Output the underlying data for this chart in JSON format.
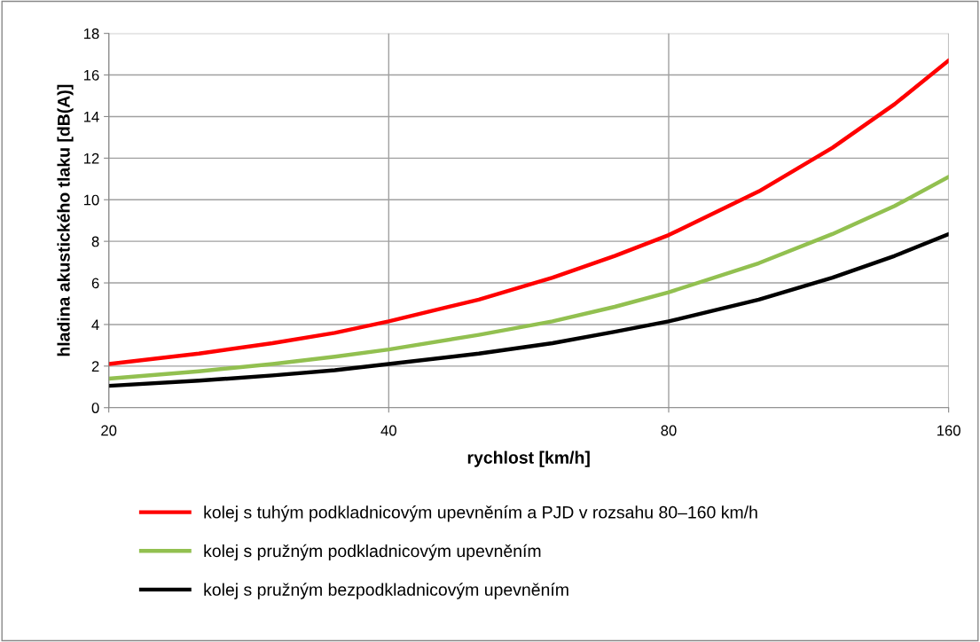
{
  "chart_data": {
    "type": "line",
    "xlabel": "rychlost [km/h]",
    "ylabel": "hladina akustického tlaku [dB(A)]",
    "x": [
      20,
      25,
      30,
      35,
      40,
      50,
      60,
      70,
      80,
      100,
      120,
      140,
      160
    ],
    "series": [
      {
        "name": "kolej s tuhým podkladnicovým upevněním a PJD v rozsahu 80–160 km/h",
        "color": "#ff0000",
        "values": [
          2.1,
          2.6,
          3.1,
          3.6,
          4.15,
          5.2,
          6.25,
          7.3,
          8.3,
          10.4,
          12.5,
          14.6,
          16.7
        ]
      },
      {
        "name": "kolej s pružným podkladnicovým upevněním",
        "color": "#92c050",
        "values": [
          1.4,
          1.75,
          2.1,
          2.45,
          2.8,
          3.5,
          4.15,
          4.85,
          5.55,
          6.95,
          8.35,
          9.7,
          11.1
        ]
      },
      {
        "name": "kolej s pružným bezpodkladnicovým upevněním",
        "color": "#000000",
        "values": [
          1.05,
          1.3,
          1.55,
          1.8,
          2.1,
          2.6,
          3.1,
          3.65,
          4.15,
          5.2,
          6.25,
          7.3,
          8.35
        ]
      }
    ],
    "log": "x",
    "xlim": [
      20,
      160
    ],
    "xticks": [
      20,
      40,
      80,
      160
    ],
    "ylim": [
      0,
      18
    ],
    "yticks": [
      0,
      2,
      4,
      6,
      8,
      10,
      12,
      14,
      16,
      18
    ],
    "grid": true,
    "legend": "bottom",
    "marker": "none",
    "line_style": "solid"
  }
}
